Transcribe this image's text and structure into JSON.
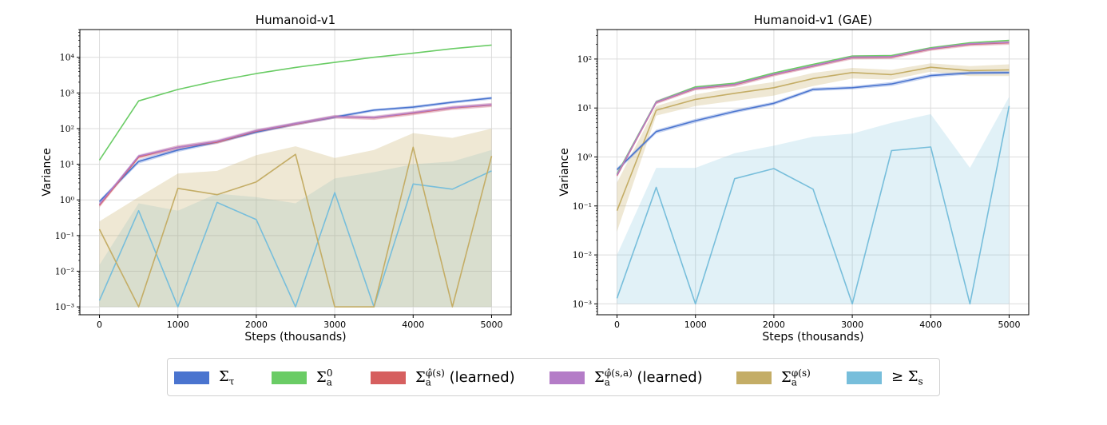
{
  "chart_data": [
    {
      "type": "line",
      "title": "Humanoid-v1",
      "xlabel": "Steps (thousands)",
      "ylabel": "Variance",
      "yscale": "log",
      "ylim": [
        0.0006,
        60000
      ],
      "xlim": [
        -250,
        5250
      ],
      "x_ticks": [
        0,
        1000,
        2000,
        3000,
        4000,
        5000
      ],
      "x_tick_labels": [
        "0",
        "1000",
        "2000",
        "3000",
        "4000",
        "5000"
      ],
      "y_ticks": [
        0.001,
        0.01,
        0.1,
        1,
        10,
        100,
        1000,
        10000
      ],
      "y_tick_labels": [
        "10⁻³",
        "10⁻²",
        "10⁻¹",
        "10⁰",
        "10¹",
        "10²",
        "10³",
        "10⁴"
      ],
      "grid": true,
      "x": [
        0,
        500,
        1000,
        1500,
        2000,
        2500,
        3000,
        3500,
        4000,
        4500,
        5000
      ],
      "series": [
        {
          "key": "s_tau",
          "color": "#4a74cf",
          "values": [
            0.9,
            12,
            25,
            42,
            80,
            135,
            210,
            330,
            400,
            550,
            720
          ],
          "lower": [
            0.8,
            10.5,
            22,
            38,
            72,
            122,
            190,
            300,
            360,
            500,
            650
          ],
          "upper": [
            1.0,
            13.5,
            28,
            47,
            88,
            150,
            230,
            360,
            440,
            600,
            790
          ]
        },
        {
          "key": "s_a0",
          "color": "#6acc65",
          "values": [
            13,
            600,
            1250,
            2200,
            3500,
            5200,
            7200,
            10000,
            13000,
            17500,
            22000
          ]
        },
        {
          "key": "s_phi_s",
          "color": "#d65f5f",
          "values": [
            0.7,
            16,
            30,
            42,
            85,
            135,
            215,
            200,
            270,
            380,
            460
          ],
          "lower": [
            0.6,
            14,
            26,
            37,
            75,
            120,
            190,
            175,
            235,
            330,
            400
          ],
          "upper": [
            0.8,
            18,
            34,
            48,
            95,
            150,
            240,
            225,
            305,
            430,
            520
          ]
        },
        {
          "key": "s_phi_sa",
          "color": "#b47cc7",
          "values": [
            0.75,
            17,
            30,
            44,
            88,
            138,
            218,
            205,
            280,
            390,
            470
          ],
          "lower": [
            0.65,
            15,
            26,
            39,
            78,
            122,
            192,
            180,
            245,
            340,
            410
          ],
          "upper": [
            0.85,
            19,
            34,
            50,
            98,
            154,
            244,
            230,
            315,
            440,
            530
          ]
        },
        {
          "key": "s_phi_a",
          "color": "#c4ad66",
          "values": [
            0.15,
            0.001,
            2.1,
            1.4,
            3.2,
            19,
            0.001,
            0.001,
            30,
            0.001,
            17
          ],
          "lower": [
            0.001,
            0.001,
            0.001,
            0.001,
            0.001,
            0.001,
            0.001,
            0.001,
            0.001,
            0.001,
            0.001
          ],
          "upper": [
            0.25,
            1.2,
            5.5,
            6.5,
            18,
            32,
            15,
            25,
            75,
            55,
            100
          ]
        },
        {
          "key": "ge_s",
          "color": "#77bedb",
          "values": [
            0.0015,
            0.5,
            0.001,
            0.85,
            0.28,
            0.001,
            1.6,
            0.001,
            2.8,
            2.0,
            6.5
          ],
          "lower": [
            0.001,
            0.001,
            0.001,
            0.001,
            0.001,
            0.001,
            0.001,
            0.001,
            0.001,
            0.001,
            0.001
          ],
          "upper": [
            0.015,
            0.8,
            0.5,
            1.5,
            1.2,
            0.8,
            4.0,
            6.0,
            10,
            12,
            25
          ]
        }
      ]
    },
    {
      "type": "line",
      "title": "Humanoid-v1 (GAE)",
      "xlabel": "Steps (thousands)",
      "ylabel": "Variance",
      "yscale": "log",
      "ylim": [
        0.0006,
        400
      ],
      "xlim": [
        -250,
        5250
      ],
      "x_ticks": [
        0,
        1000,
        2000,
        3000,
        4000,
        5000
      ],
      "x_tick_labels": [
        "0",
        "1000",
        "2000",
        "3000",
        "4000",
        "5000"
      ],
      "y_ticks": [
        0.001,
        0.01,
        0.1,
        1,
        10,
        100
      ],
      "y_tick_labels": [
        "10⁻³",
        "10⁻²",
        "10⁻¹",
        "10⁰",
        "10¹",
        "10²"
      ],
      "grid": true,
      "x": [
        0,
        500,
        1000,
        1500,
        2000,
        2500,
        3000,
        3500,
        4000,
        4500,
        5000
      ],
      "series": [
        {
          "key": "s_tau",
          "color": "#4a74cf",
          "values": [
            0.55,
            3.3,
            5.5,
            8.5,
            12.5,
            24,
            26,
            31,
            46,
            52,
            53
          ],
          "lower": [
            0.5,
            3.0,
            5.0,
            7.8,
            11.5,
            22,
            24,
            28,
            42,
            48,
            49
          ],
          "upper": [
            0.6,
            3.6,
            6.0,
            9.3,
            13.5,
            26,
            28,
            34,
            50,
            56,
            57
          ]
        },
        {
          "key": "s_a0",
          "color": "#6acc65",
          "values": [
            0.45,
            13.5,
            27,
            32,
            52,
            78,
            115,
            118,
            170,
            215,
            240
          ]
        },
        {
          "key": "s_phi_s",
          "color": "#d65f5f",
          "values": [
            0.42,
            13,
            25,
            30,
            48,
            72,
            108,
            110,
            160,
            200,
            215
          ],
          "lower": [
            0.38,
            12,
            23,
            27,
            44,
            66,
            98,
            100,
            146,
            182,
            195
          ],
          "upper": [
            0.46,
            14,
            27,
            33,
            52,
            78,
            118,
            120,
            174,
            218,
            235
          ]
        },
        {
          "key": "s_phi_sa",
          "color": "#b47cc7",
          "values": [
            0.43,
            13.2,
            25.5,
            30.5,
            49,
            73,
            110,
            112,
            163,
            205,
            220
          ],
          "lower": [
            0.39,
            12,
            23,
            27.5,
            45,
            67,
            100,
            102,
            149,
            187,
            200
          ],
          "upper": [
            0.47,
            14.4,
            28,
            33.5,
            53,
            79,
            120,
            122,
            177,
            223,
            240
          ]
        },
        {
          "key": "s_phi_a",
          "color": "#c4ad66",
          "values": [
            0.08,
            9,
            15,
            20,
            26,
            40,
            53,
            48,
            68,
            58,
            60
          ],
          "lower": [
            0.03,
            7,
            11,
            14,
            18,
            28,
            40,
            38,
            55,
            45,
            45
          ],
          "upper": [
            0.3,
            11,
            19,
            26,
            34,
            52,
            66,
            60,
            82,
            72,
            78
          ]
        },
        {
          "key": "ge_s",
          "color": "#77bedb",
          "values": [
            0.0013,
            0.24,
            0.001,
            0.36,
            0.58,
            0.22,
            0.001,
            1.35,
            1.6,
            0.001,
            11
          ],
          "lower": [
            0.001,
            0.001,
            0.001,
            0.001,
            0.001,
            0.001,
            0.001,
            0.001,
            0.001,
            0.001,
            0.001
          ],
          "upper": [
            0.01,
            0.6,
            0.6,
            1.2,
            1.7,
            2.6,
            3.0,
            5.0,
            7.5,
            0.6,
            17
          ]
        }
      ]
    }
  ],
  "legend": {
    "placement": "bottom-center",
    "items": [
      {
        "key": "s_tau",
        "color": "#4a74cf",
        "label": "Σ_τ"
      },
      {
        "key": "s_a0",
        "color": "#6acc65",
        "label": "Σ_a^0"
      },
      {
        "key": "s_phi_s",
        "color": "#d65f5f",
        "label": "Σ_a^φ̂(s) (learned)"
      },
      {
        "key": "s_phi_sa",
        "color": "#b47cc7",
        "label": "Σ_a^φ̂(s,a) (learned)"
      },
      {
        "key": "s_phi_a",
        "color": "#c4ad66",
        "label": "Σ_a^φ(s)"
      },
      {
        "key": "ge_s",
        "color": "#77bedb",
        "label": "≥ Σ_s"
      }
    ]
  }
}
